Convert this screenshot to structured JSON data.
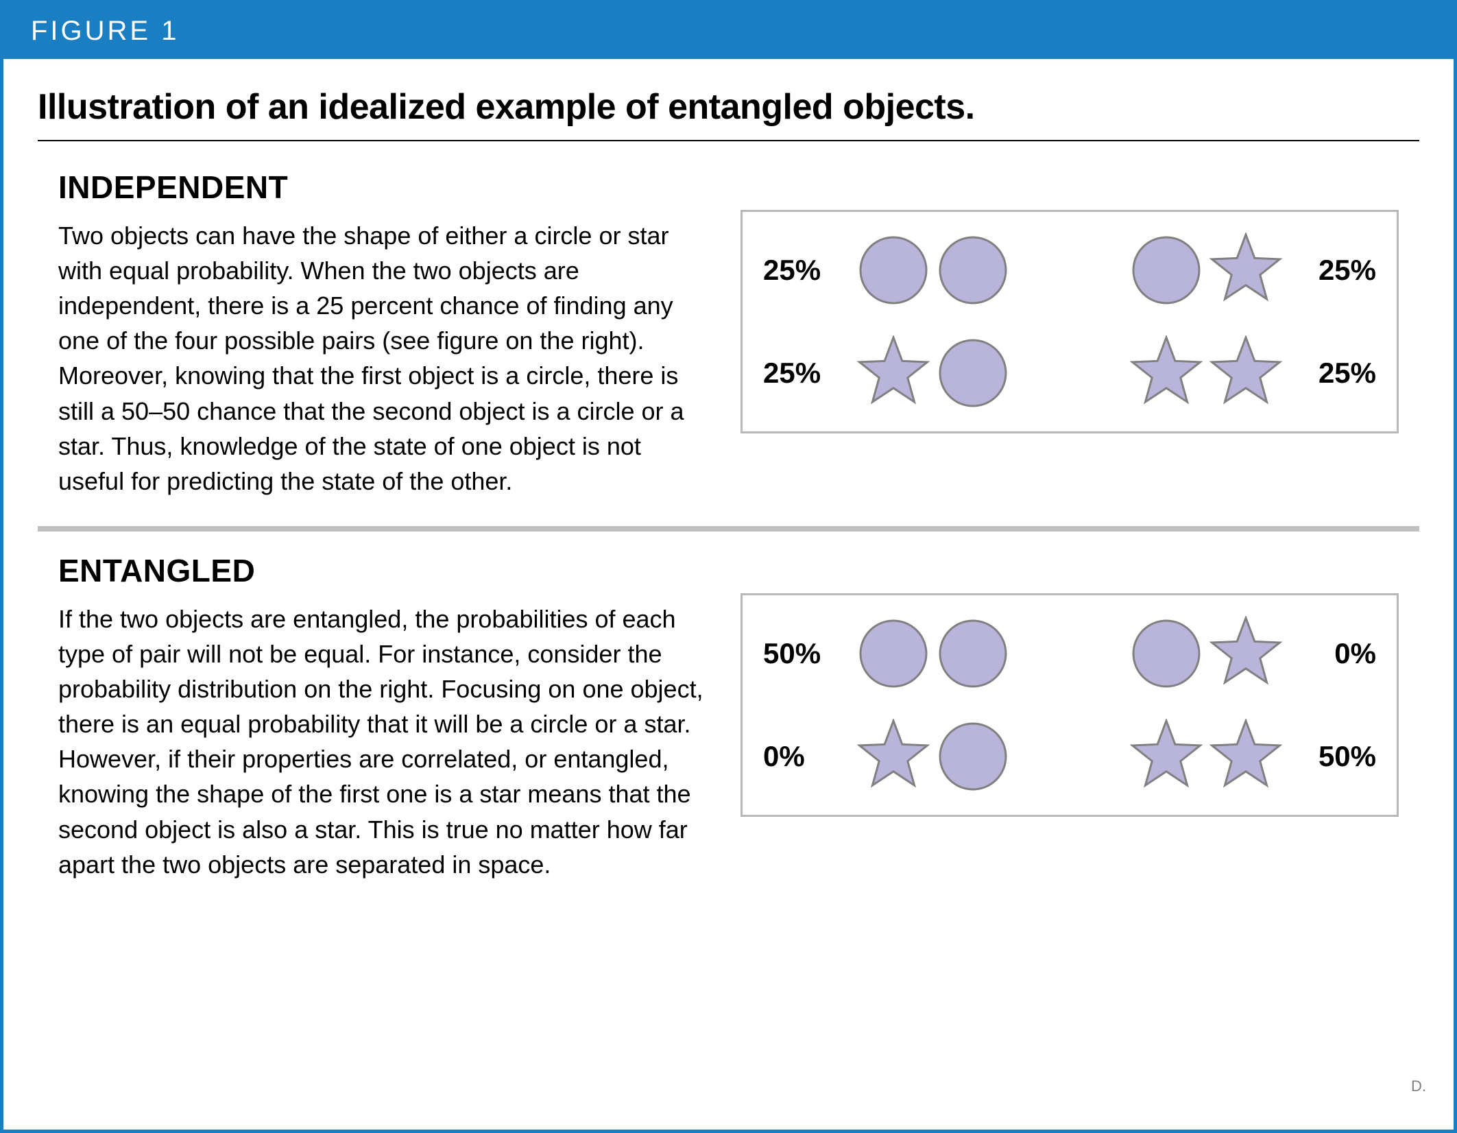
{
  "header": {
    "label": "FIGURE 1"
  },
  "title": "Illustration of an idealized example of entangled objects.",
  "colors": {
    "border": "#1a7fc2",
    "header_bg": "#1a7fc2",
    "header_text": "#ffffff",
    "shape_fill": "#b8b4da",
    "shape_stroke": "#808080",
    "divider": "#c0c0c0",
    "box_border": "#b8b8b8",
    "text": "#000000",
    "credit": "#808080"
  },
  "sections": {
    "independent": {
      "heading": "INDEPENDENT",
      "body": "Two objects can have the shape of either a circle or star with equal probability. When the two objects are independent, there is a 25 percent chance of finding any one of the four possible pairs (see figure on the right). Moreover, knowing that the first object is a circle, there is still a 50–50 chance that the second object is a circle or a star. Thus, knowledge of the state of one object is not useful for predicting the state of the other.",
      "diagram": {
        "type": "infographic",
        "rows": [
          {
            "left_pct": "25%",
            "left_shapes": [
              "circle",
              "circle"
            ],
            "right_shapes": [
              "circle",
              "star"
            ],
            "right_pct": "25%"
          },
          {
            "left_pct": "25%",
            "left_shapes": [
              "star",
              "circle"
            ],
            "right_shapes": [
              "star",
              "star"
            ],
            "right_pct": "25%"
          }
        ],
        "shape_size": 110,
        "circle_radius": 48,
        "stroke_width": 3
      }
    },
    "entangled": {
      "heading": "ENTANGLED",
      "body": "If the two objects are entangled, the probabilities of each type of pair will not be equal. For instance, consider the probability distribution on the right. Focusing on one object, there is an equal probability that it will be a circle or a star. However, if their properties are correlated, or entangled, knowing the shape of the first one is a star means that the second object is also a star. This is true no matter how far apart the two objects are separated in space.",
      "diagram": {
        "type": "infographic",
        "rows": [
          {
            "left_pct": "50%",
            "left_shapes": [
              "circle",
              "circle"
            ],
            "right_shapes": [
              "circle",
              "star"
            ],
            "right_pct": "0%"
          },
          {
            "left_pct": "0%",
            "left_shapes": [
              "star",
              "circle"
            ],
            "right_shapes": [
              "star",
              "star"
            ],
            "right_pct": "50%"
          }
        ],
        "shape_size": 110,
        "circle_radius": 48,
        "stroke_width": 3
      }
    }
  },
  "credit": "D."
}
